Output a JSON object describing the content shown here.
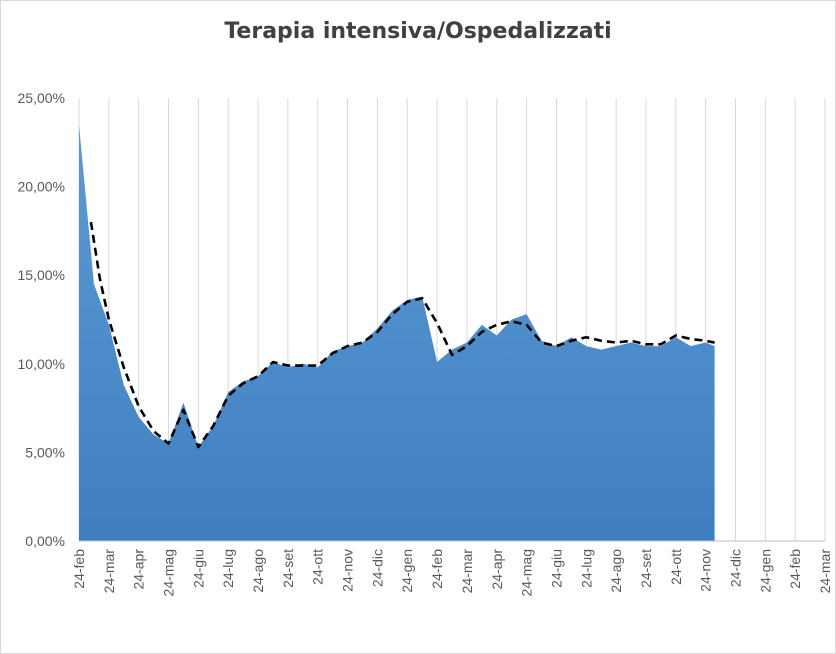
{
  "chart_data": {
    "type": "area",
    "title": "Terapia intensiva/Ospedalizzati",
    "xlabel": "",
    "ylabel": "",
    "ylim": [
      0,
      25
    ],
    "y_ticks": [
      0,
      5,
      10,
      15,
      20,
      25
    ],
    "y_tick_labels": [
      "0,00%",
      "5,00%",
      "10,00%",
      "15,00%",
      "20,00%",
      "25,00%"
    ],
    "x_tick_labels": [
      "24-feb",
      "24-mar",
      "24-apr",
      "24-mag",
      "24-giu",
      "24-lug",
      "24-ago",
      "24-set",
      "24-ott",
      "24-nov",
      "24-dic",
      "24-gen",
      "24-feb",
      "24-mar",
      "24-apr",
      "24-mag",
      "24-giu",
      "24-lug",
      "24-ago",
      "24-set",
      "24-ott",
      "24-nov",
      "24-dic",
      "24-gen",
      "24-feb",
      "24-mar"
    ],
    "grid": "vertical",
    "legend": "none",
    "colors": {
      "area_top": "#5b9bd5",
      "area_bottom": "#3f7fc0",
      "trend": "#000000",
      "grid": "#d9d9d9",
      "axis_text": "#595959"
    },
    "series": [
      {
        "kind": "area",
        "x": [
          0,
          0.5,
          1,
          1.5,
          2,
          2.5,
          3,
          3.5,
          4,
          4.5,
          5,
          5.5,
          6,
          6.5,
          7,
          7.5,
          8,
          8.5,
          9,
          9.5,
          10,
          10.5,
          11,
          11.5,
          12,
          12.5,
          13,
          13.5,
          14,
          14.5,
          15,
          15.5,
          16,
          16.5,
          17,
          17.5,
          18,
          18.5,
          19,
          19.5,
          20,
          20.5,
          21,
          21.3
        ],
        "values": [
          23.5,
          14.5,
          12.2,
          8.8,
          7.0,
          6.0,
          5.5,
          7.8,
          5.3,
          6.5,
          8.4,
          9.0,
          9.3,
          10.1,
          9.8,
          10.0,
          9.8,
          10.7,
          11.0,
          11.2,
          12.0,
          13.0,
          13.6,
          13.8,
          10.1,
          10.8,
          11.2,
          12.2,
          11.6,
          12.5,
          12.8,
          11.3,
          11.0,
          11.5,
          11.0,
          10.8,
          11.0,
          11.2,
          11.0,
          11.0,
          11.5,
          11.0,
          11.2,
          11.0
        ]
      },
      {
        "kind": "trend",
        "x": [
          0.4,
          0.7,
          1,
          1.5,
          2,
          2.5,
          3,
          3.5,
          4,
          4.5,
          5,
          5.5,
          6,
          6.5,
          7,
          7.5,
          8,
          8.5,
          9,
          9.5,
          10,
          10.5,
          11,
          11.5,
          12,
          12.5,
          13,
          13.5,
          14,
          14.5,
          15,
          15.5,
          16,
          16.5,
          17,
          17.5,
          18,
          18.5,
          19,
          19.5,
          20,
          20.5,
          21,
          21.3
        ],
        "values": [
          18.0,
          14.8,
          12.5,
          9.8,
          7.6,
          6.2,
          5.5,
          7.4,
          5.3,
          6.5,
          8.2,
          8.9,
          9.3,
          10.1,
          9.9,
          9.9,
          9.9,
          10.6,
          11.0,
          11.2,
          11.8,
          12.8,
          13.5,
          13.7,
          12.3,
          10.5,
          11.0,
          11.8,
          12.2,
          12.4,
          12.2,
          11.2,
          11.0,
          11.3,
          11.5,
          11.3,
          11.2,
          11.3,
          11.1,
          11.1,
          11.6,
          11.4,
          11.3,
          11.2
        ]
      }
    ]
  }
}
